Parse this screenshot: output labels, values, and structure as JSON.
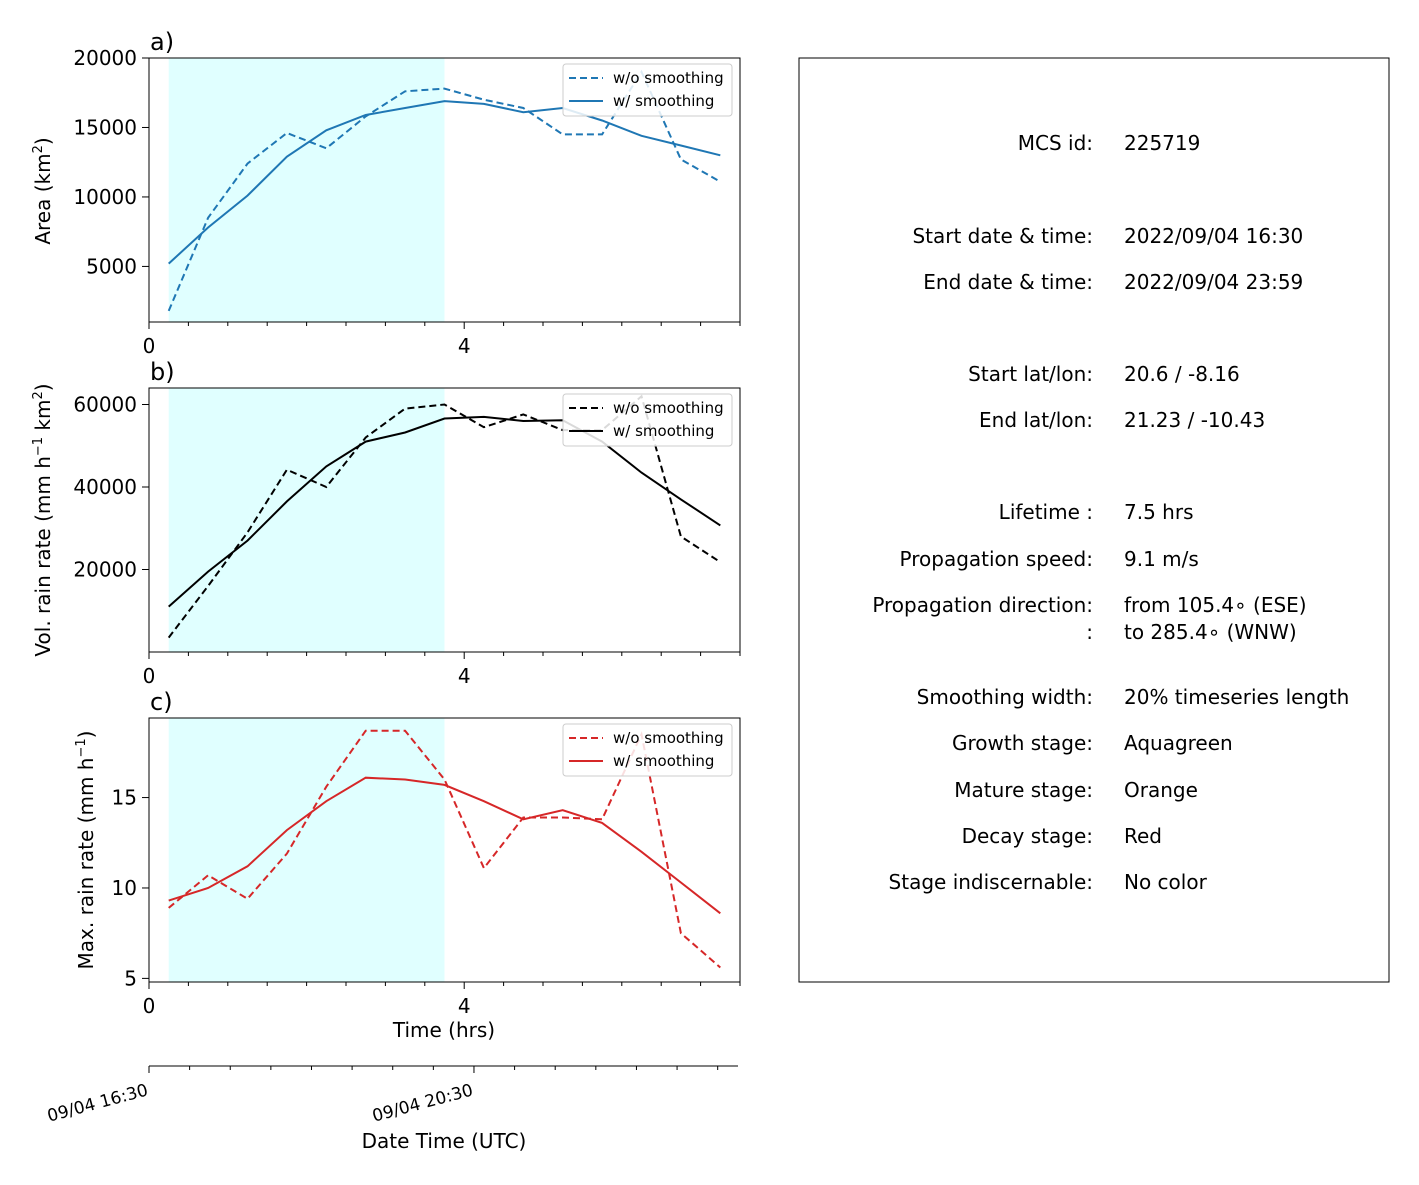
{
  "chart_data": [
    {
      "type": "line",
      "panel_label": "a)",
      "ylabel": "Area  (km",
      "ylabel_sup": "2",
      "ylabel_close": ")",
      "xlim": [
        0,
        7.5
      ],
      "ylim": [
        1000,
        20000
      ],
      "xticks": [
        0,
        4
      ],
      "xtick_labels": [
        "0",
        "4"
      ],
      "minor_xticks": [
        0.5,
        1,
        1.5,
        2,
        2.5,
        3,
        3.5,
        4.5,
        5,
        5.5,
        6,
        6.5,
        7,
        7.5
      ],
      "yticks": [
        5000,
        10000,
        15000,
        20000
      ],
      "ytick_labels": [
        "5000",
        "10000",
        "15000",
        "20000"
      ],
      "shade": [
        0.25,
        3.75
      ],
      "shade_color": "#e0ffff",
      "color": "#1f77b4",
      "legend": [
        "w/o smoothing",
        "w/ smoothing"
      ],
      "legend_position": "upper right",
      "series": [
        {
          "name": "w/o smoothing",
          "dashed": true,
          "x": [
            0.25,
            0.75,
            1.25,
            1.75,
            2.25,
            2.75,
            3.25,
            3.75,
            4.25,
            4.75,
            5.25,
            5.75,
            6.25,
            6.75,
            7.25
          ],
          "y": [
            1800,
            8500,
            12400,
            14600,
            13500,
            15800,
            17600,
            17800,
            17000,
            16400,
            14500,
            14500,
            19000,
            12700,
            11100
          ]
        },
        {
          "name": "w/ smoothing",
          "dashed": false,
          "x": [
            0.25,
            0.75,
            1.25,
            1.75,
            2.25,
            2.75,
            3.25,
            3.75,
            4.25,
            4.75,
            5.25,
            5.75,
            6.25,
            6.75,
            7.25
          ],
          "y": [
            5200,
            7800,
            10100,
            12900,
            14800,
            15900,
            16400,
            16900,
            16700,
            16100,
            16400,
            15500,
            14400,
            13700,
            13000
          ]
        }
      ]
    },
    {
      "type": "line",
      "panel_label": "b)",
      "ylabel": "Vol. rain rate (mm h",
      "ylabel_sup": "−1",
      "ylabel_mid": " km",
      "ylabel_sup2": "2",
      "ylabel_close": ")",
      "xlim": [
        0,
        7.5
      ],
      "ylim": [
        0,
        64000
      ],
      "xticks": [
        0,
        4
      ],
      "xtick_labels": [
        "0",
        "4"
      ],
      "minor_xticks": [
        0.5,
        1,
        1.5,
        2,
        2.5,
        3,
        3.5,
        4.5,
        5,
        5.5,
        6,
        6.5,
        7,
        7.5
      ],
      "yticks": [
        20000,
        40000,
        60000
      ],
      "ytick_labels": [
        "20000",
        "40000",
        "60000"
      ],
      "shade": [
        0.25,
        3.75
      ],
      "shade_color": "#e0ffff",
      "color": "#000000",
      "legend": [
        "w/o smoothing",
        "w/ smoothing"
      ],
      "legend_position": "upper right",
      "series": [
        {
          "name": "w/o smoothing",
          "dashed": true,
          "x": [
            0.25,
            0.75,
            1.25,
            1.75,
            2.25,
            2.75,
            3.25,
            3.75,
            4.25,
            4.75,
            5.25,
            5.75,
            6.25,
            6.75,
            7.25
          ],
          "y": [
            3500,
            16000,
            29000,
            44200,
            40000,
            52000,
            59000,
            60000,
            54500,
            57600,
            53800,
            53800,
            62000,
            28000,
            21800
          ]
        },
        {
          "name": "w/ smoothing",
          "dashed": false,
          "x": [
            0.25,
            0.75,
            1.25,
            1.75,
            2.25,
            2.75,
            3.25,
            3.75,
            4.25,
            4.75,
            5.25,
            5.75,
            6.25,
            6.75,
            7.25
          ],
          "y": [
            11000,
            19500,
            27000,
            36500,
            45000,
            51000,
            53200,
            56600,
            57000,
            56000,
            56200,
            51000,
            43500,
            37000,
            30700
          ]
        }
      ]
    },
    {
      "type": "line",
      "panel_label": "c)",
      "ylabel": "Max. rain rate  (mm h",
      "ylabel_sup": "−1",
      "ylabel_close": ")",
      "xlabel": "Time (hrs)",
      "xlim": [
        0,
        7.5
      ],
      "ylim": [
        4.8,
        19.4
      ],
      "xticks": [
        0,
        4
      ],
      "xtick_labels": [
        "0",
        "4"
      ],
      "minor_xticks": [
        0.5,
        1,
        1.5,
        2,
        2.5,
        3,
        3.5,
        4.5,
        5,
        5.5,
        6,
        6.5,
        7,
        7.5
      ],
      "yticks": [
        5,
        10,
        15
      ],
      "ytick_labels": [
        "5",
        "10",
        "15"
      ],
      "shade": [
        0.25,
        3.75
      ],
      "shade_color": "#e0ffff",
      "color": "#d62728",
      "legend": [
        "w/o smoothing",
        "w/ smoothing"
      ],
      "legend_position": "upper right",
      "series": [
        {
          "name": "w/o smoothing",
          "dashed": true,
          "x": [
            0.25,
            0.75,
            1.25,
            1.75,
            2.25,
            2.75,
            3.25,
            3.75,
            4.25,
            4.75,
            5.25,
            5.75,
            6.25,
            6.75,
            7.25
          ],
          "y": [
            8.9,
            10.7,
            9.4,
            11.9,
            15.6,
            18.7,
            18.7,
            16.0,
            11.1,
            13.9,
            13.9,
            13.8,
            18.5,
            7.5,
            5.6
          ]
        },
        {
          "name": "w/ smoothing",
          "dashed": false,
          "x": [
            0.25,
            0.75,
            1.25,
            1.75,
            2.25,
            2.75,
            3.25,
            3.75,
            4.25,
            4.75,
            5.25,
            5.75,
            6.25,
            6.75,
            7.25
          ],
          "y": [
            9.3,
            10.0,
            11.2,
            13.2,
            14.8,
            16.1,
            16.0,
            15.7,
            14.8,
            13.8,
            14.3,
            13.6,
            12.0,
            10.3,
            8.6
          ]
        }
      ]
    }
  ],
  "date_axis": {
    "xlabel": "Date Time (UTC)",
    "tick_labels": [
      "09/04 16:30",
      "09/04 20:30"
    ]
  },
  "info_box": {
    "rows": [
      {
        "label": "MCS id:",
        "value": "225719"
      },
      {
        "label": "Start date & time:",
        "value": "2022/09/04 16:30"
      },
      {
        "label": "End date & time:",
        "value": "2022/09/04 23:59"
      },
      {
        "label": "Start lat/lon:",
        "value": "20.6 / -8.16"
      },
      {
        "label": "End lat/lon:",
        "value": "21.23 / -10.43"
      },
      {
        "label": "Lifetime :",
        "value": "7.5 hrs"
      },
      {
        "label": "Propagation speed:",
        "value": "9.1 m/s"
      },
      {
        "label": "Propagation direction:",
        "value": "from 105.4∘ (ESE)"
      },
      {
        "label": ":",
        "value": "to   285.4∘ (WNW)"
      },
      {
        "label": "Smoothing width:",
        "value": "20% timeseries length"
      },
      {
        "label": "Growth stage:",
        "value": "Aquagreen"
      },
      {
        "label": "Mature stage:",
        "value": "Orange"
      },
      {
        "label": "Decay stage:",
        "value": "Red"
      },
      {
        "label": "Stage indiscernable:",
        "value": "No color"
      }
    ]
  }
}
